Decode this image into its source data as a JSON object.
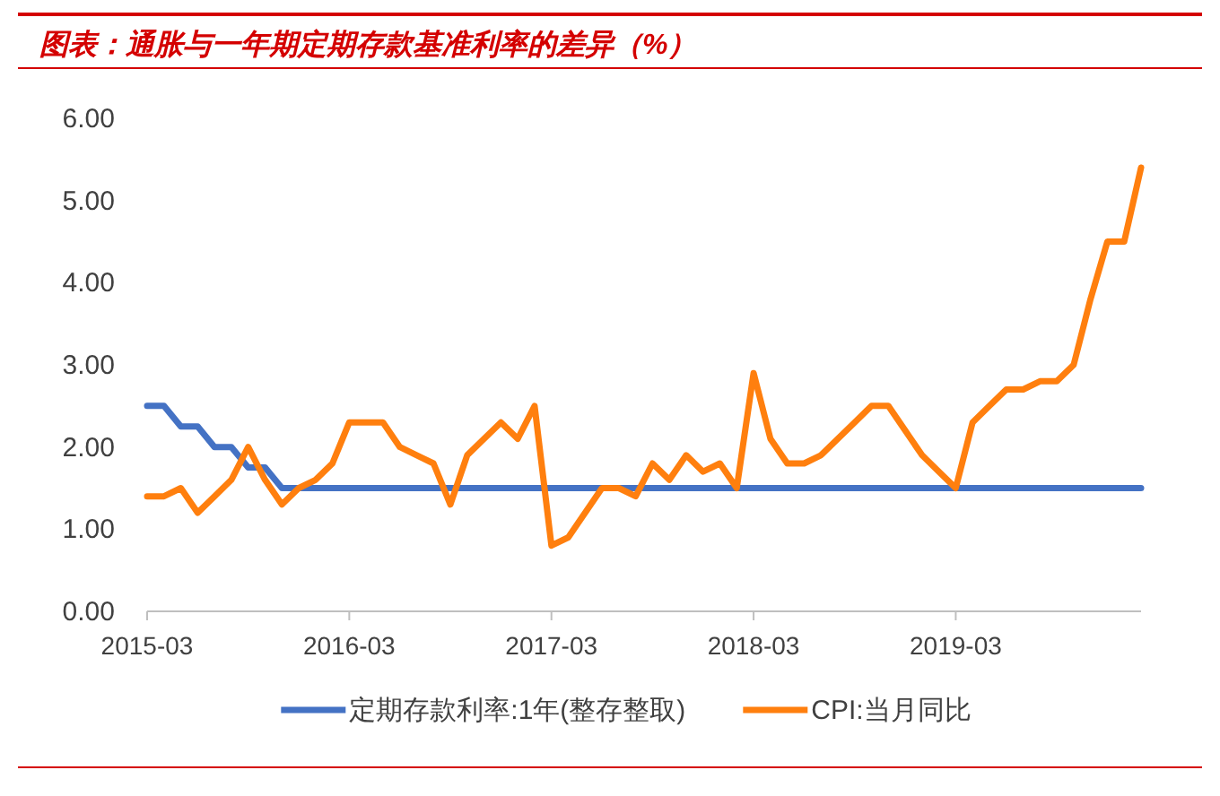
{
  "chart_data": {
    "type": "line",
    "title": "图表：通胀与一年期定期存款基准利率的差异（%）",
    "x": [
      "2015-03",
      "2015-04",
      "2015-05",
      "2015-06",
      "2015-07",
      "2015-08",
      "2015-09",
      "2015-10",
      "2015-11",
      "2015-12",
      "2016-01",
      "2016-02",
      "2016-03",
      "2016-04",
      "2016-05",
      "2016-06",
      "2016-07",
      "2016-08",
      "2016-09",
      "2016-10",
      "2016-11",
      "2016-12",
      "2017-01",
      "2017-02",
      "2017-03",
      "2017-04",
      "2017-05",
      "2017-06",
      "2017-07",
      "2017-08",
      "2017-09",
      "2017-10",
      "2017-11",
      "2017-12",
      "2018-01",
      "2018-02",
      "2018-03",
      "2018-04",
      "2018-05",
      "2018-06",
      "2018-07",
      "2018-08",
      "2018-09",
      "2018-10",
      "2018-11",
      "2018-12",
      "2019-01",
      "2019-02",
      "2019-03",
      "2019-04",
      "2019-05",
      "2019-06",
      "2019-07",
      "2019-08",
      "2019-09",
      "2019-10",
      "2019-11",
      "2019-12",
      "2020-01",
      "2020-02"
    ],
    "series": [
      {
        "name": "定期存款利率:1年(整存整取)",
        "color": "#4472c4",
        "values": [
          2.5,
          2.5,
          2.25,
          2.25,
          2.0,
          2.0,
          1.75,
          1.75,
          1.5,
          1.5,
          1.5,
          1.5,
          1.5,
          1.5,
          1.5,
          1.5,
          1.5,
          1.5,
          1.5,
          1.5,
          1.5,
          1.5,
          1.5,
          1.5,
          1.5,
          1.5,
          1.5,
          1.5,
          1.5,
          1.5,
          1.5,
          1.5,
          1.5,
          1.5,
          1.5,
          1.5,
          1.5,
          1.5,
          1.5,
          1.5,
          1.5,
          1.5,
          1.5,
          1.5,
          1.5,
          1.5,
          1.5,
          1.5,
          1.5,
          1.5,
          1.5,
          1.5,
          1.5,
          1.5,
          1.5,
          1.5,
          1.5,
          1.5,
          1.5,
          1.5
        ]
      },
      {
        "name": "CPI:当月同比",
        "color": "#ff7f0e",
        "values": [
          1.4,
          1.4,
          1.5,
          1.2,
          1.4,
          1.6,
          2.0,
          1.6,
          1.3,
          1.5,
          1.6,
          1.8,
          2.3,
          2.3,
          2.3,
          2.0,
          1.9,
          1.8,
          1.3,
          1.9,
          2.1,
          2.3,
          2.1,
          2.5,
          0.8,
          0.9,
          1.2,
          1.5,
          1.5,
          1.4,
          1.8,
          1.6,
          1.9,
          1.7,
          1.8,
          1.5,
          2.9,
          2.1,
          1.8,
          1.8,
          1.9,
          2.1,
          2.3,
          2.5,
          2.5,
          2.2,
          1.9,
          1.7,
          1.5,
          2.3,
          2.5,
          2.7,
          2.7,
          2.8,
          2.8,
          3.0,
          3.8,
          4.5,
          4.5,
          5.4
        ]
      }
    ],
    "xlim": [
      "2015-03",
      "2020-02"
    ],
    "xticks": [
      "2015-03",
      "2016-03",
      "2017-03",
      "2018-03",
      "2019-03"
    ],
    "ylim": [
      0,
      6
    ],
    "yticks": [
      {
        "value": 0,
        "label": "0.00"
      },
      {
        "value": 1,
        "label": "1.00"
      },
      {
        "value": 2,
        "label": "2.00"
      },
      {
        "value": 3,
        "label": "3.00"
      },
      {
        "value": 4,
        "label": "4.00"
      },
      {
        "value": 5,
        "label": "5.00"
      },
      {
        "value": 6,
        "label": "6.00"
      }
    ],
    "grid": false,
    "legend": "bottom",
    "marker": "none",
    "line_style": "solid"
  }
}
